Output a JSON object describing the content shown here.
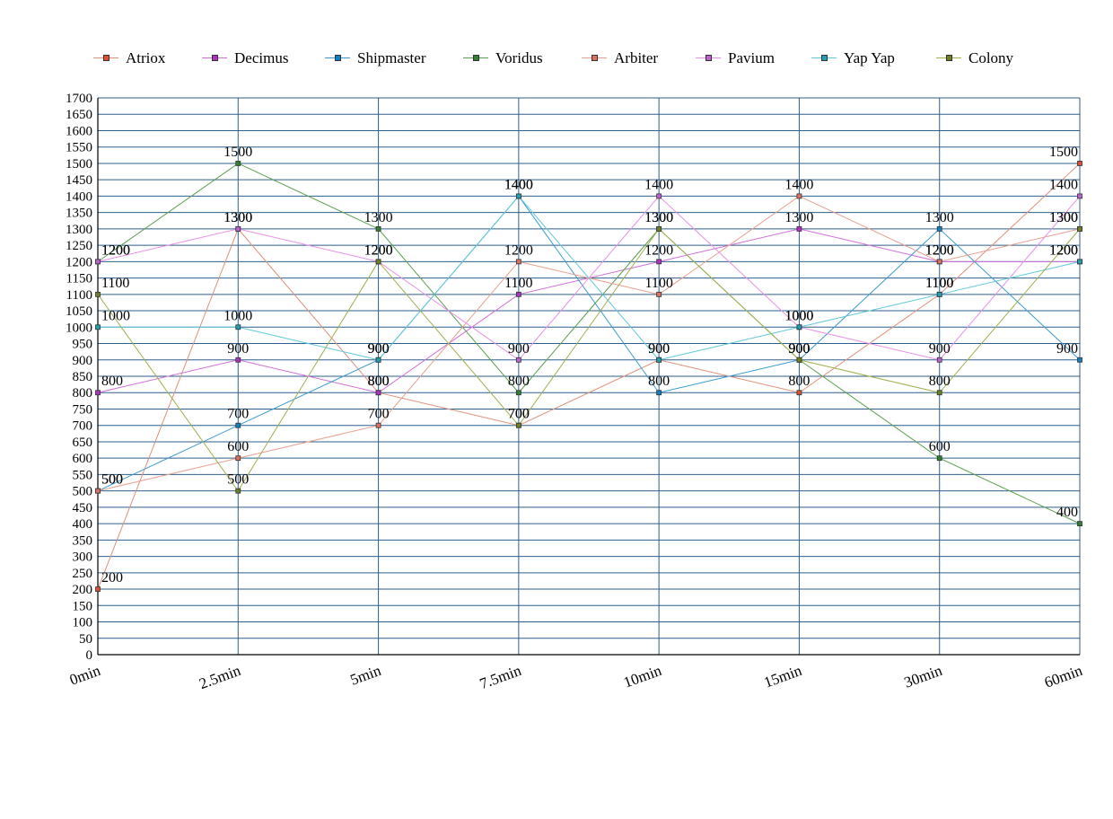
{
  "chart_data": {
    "type": "line",
    "categories": [
      "0min",
      "2.5min",
      "5min",
      "7.5min",
      "10min",
      "15min",
      "30min",
      "60min"
    ],
    "ylim": [
      0,
      1700
    ],
    "ytick_step": 50,
    "yticks": [
      "0",
      "50",
      "100",
      "150",
      "200",
      "250",
      "300",
      "350",
      "400",
      "450",
      "500",
      "550",
      "600",
      "650",
      "700",
      "750",
      "800",
      "850",
      "900",
      "950",
      "1000",
      "1050",
      "1100",
      "1150",
      "1200",
      "1250",
      "1300",
      "1350",
      "1400",
      "1450",
      "1500",
      "1550",
      "1600",
      "1650",
      "1700"
    ],
    "grid": true,
    "legend_position": "top",
    "series": [
      {
        "name": "Atriox",
        "color": "#e0907a",
        "marker": "#e05030",
        "values": [
          200,
          1300,
          800,
          700,
          900,
          800,
          1100,
          1500
        ]
      },
      {
        "name": "Decimus",
        "color": "#d070d8",
        "marker": "#b030c0",
        "values": [
          800,
          900,
          800,
          1100,
          1200,
          1300,
          1200,
          1200
        ]
      },
      {
        "name": "Shipmaster",
        "color": "#3a9ad0",
        "marker": "#1080c0",
        "values": [
          500,
          700,
          900,
          1400,
          800,
          900,
          1300,
          900
        ]
      },
      {
        "name": "Voridus",
        "color": "#5aa050",
        "marker": "#308030",
        "values": [
          1200,
          1500,
          1300,
          800,
          1300,
          900,
          600,
          400
        ]
      },
      {
        "name": "Arbiter",
        "color": "#e8a090",
        "marker": "#e07060",
        "values": [
          500,
          600,
          700,
          1200,
          1100,
          1400,
          1200,
          1300
        ]
      },
      {
        "name": "Pavium",
        "color": "#e890e8",
        "marker": "#c060d0",
        "values": [
          1200,
          1300,
          1200,
          900,
          1400,
          1000,
          900,
          1400
        ]
      },
      {
        "name": "Yap Yap",
        "color": "#60c8d8",
        "marker": "#20a0b0",
        "values": [
          1000,
          1000,
          900,
          1400,
          900,
          1000,
          1100,
          1200
        ]
      },
      {
        "name": "Colony",
        "color": "#a0b050",
        "marker": "#708020",
        "values": [
          1100,
          500,
          1200,
          700,
          1300,
          900,
          800,
          1300
        ]
      }
    ]
  }
}
